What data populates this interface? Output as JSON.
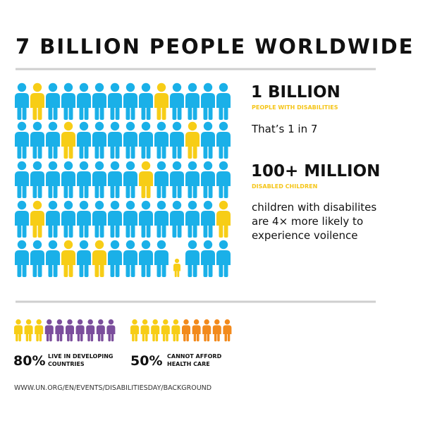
{
  "header": {
    "title": "7 BILLION PEOPLE WORLDWIDE"
  },
  "stats": [
    {
      "figure": "1 BILLION",
      "caption": "PEOPLE WITH DISABILITIES",
      "text": [
        "That’s 1 in 7"
      ]
    },
    {
      "figure": "100+ MILLION",
      "caption": "DISABLED CHILDREN",
      "text": [
        "children with disabilites",
        "are 4× more likely to",
        "experience voilence"
      ]
    }
  ],
  "footer_stats": [
    {
      "figure": "80%",
      "caption": [
        "LIVE IN DEVELOPING",
        "COUNTRIES"
      ]
    },
    {
      "figure": "50%",
      "caption": [
        "CANNOT AFFORD",
        "HEALTH CARE"
      ]
    }
  ],
  "source": "WWW.UN.ORG/EN/EVENTS/DISABILITIESDAY/BACKGROUND"
}
